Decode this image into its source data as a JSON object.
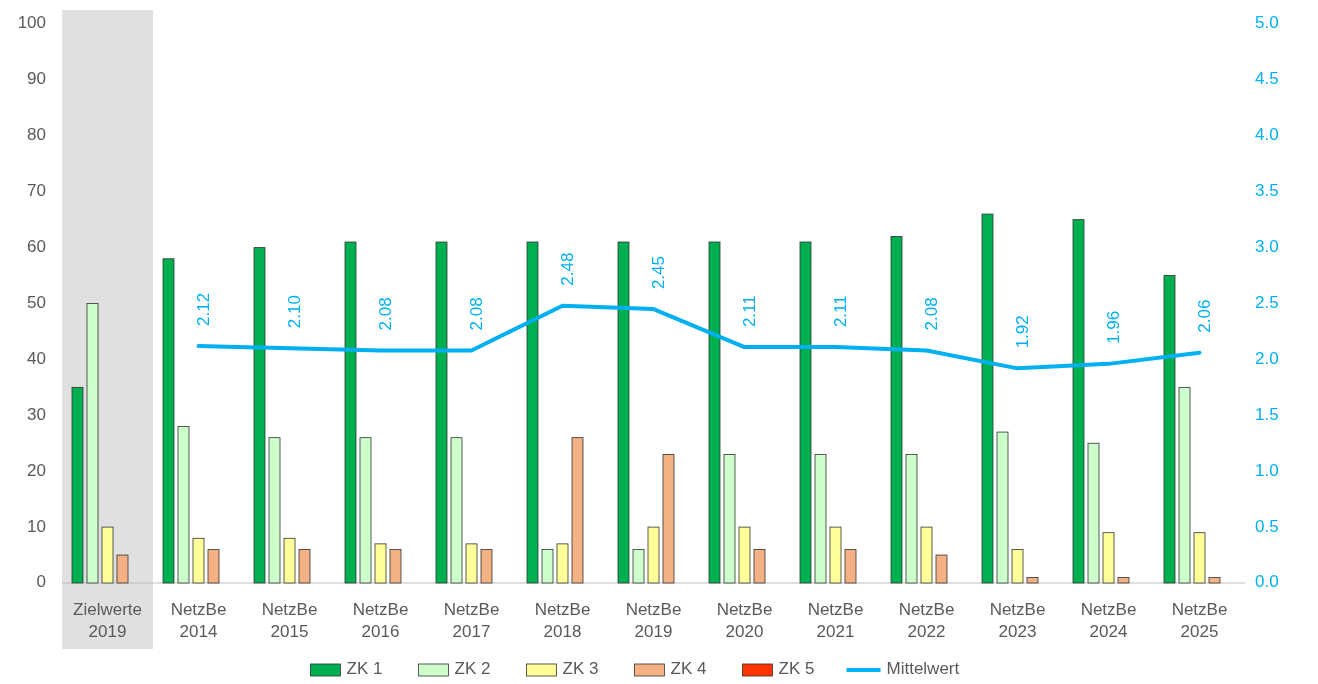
{
  "chart_data": {
    "type": "bar",
    "categories": [
      "Zielwerte 2019",
      "NetzBe 2014",
      "NetzBe 2015",
      "NetzBe 2016",
      "NetzBe 2017",
      "NetzBe 2018",
      "NetzBe 2019",
      "NetzBe 2020",
      "NetzBe 2021",
      "NetzBe 2022",
      "NetzBe 2023",
      "NetzBe 2024",
      "NetzBe 2025"
    ],
    "series": [
      {
        "name": "ZK 1",
        "color": "#00b050",
        "values": [
          35,
          58,
          60,
          61,
          61,
          61,
          61,
          61,
          61,
          62,
          66,
          65,
          55
        ]
      },
      {
        "name": "ZK 2",
        "color": "#ccffcc",
        "values": [
          50,
          28,
          26,
          26,
          26,
          6,
          6,
          23,
          23,
          23,
          27,
          25,
          35
        ]
      },
      {
        "name": "ZK 3",
        "color": "#ffff99",
        "values": [
          10,
          8,
          8,
          7,
          7,
          7,
          10,
          10,
          10,
          10,
          6,
          9,
          9
        ]
      },
      {
        "name": "ZK 4",
        "color": "#f4b183",
        "values": [
          5,
          6,
          6,
          6,
          6,
          26,
          23,
          6,
          6,
          5,
          1,
          1,
          1
        ]
      },
      {
        "name": "ZK 5",
        "color": "#ff3300",
        "values": [
          0,
          0,
          0,
          0,
          0,
          0,
          0,
          0,
          0,
          0,
          0,
          0,
          0
        ]
      },
      {
        "name": "Mittelwert",
        "type": "line",
        "axis": "y2",
        "color": "#00b0f0",
        "values": [
          null,
          2.12,
          2.1,
          2.08,
          2.08,
          2.48,
          2.45,
          2.11,
          2.11,
          2.08,
          1.92,
          1.96,
          2.06
        ],
        "value_labels": [
          null,
          "2.12",
          "2.10",
          "2.08",
          "2.08",
          "2.48",
          "2.45",
          "2.11",
          "2.11",
          "2.08",
          "1.92",
          "1.96",
          "2.06"
        ]
      }
    ],
    "ylim": [
      0,
      100
    ],
    "yticks": [
      0,
      10,
      20,
      30,
      40,
      50,
      60,
      70,
      80,
      90,
      100
    ],
    "y2lim": [
      0,
      5
    ],
    "y2ticks": [
      {
        "value": 0,
        "label": "0.0"
      },
      {
        "value": 0.5,
        "label": "0.5"
      },
      {
        "value": 1,
        "label": "1.0"
      },
      {
        "value": 1.5,
        "label": "1.5"
      },
      {
        "value": 2,
        "label": "2.0"
      },
      {
        "value": 2.5,
        "label": "2.5"
      },
      {
        "value": 3,
        "label": "3.0"
      },
      {
        "value": 3.5,
        "label": "3.5"
      },
      {
        "value": 4,
        "label": "4.0"
      },
      {
        "value": 4.5,
        "label": "4.5"
      },
      {
        "value": 5,
        "label": "5.0"
      }
    ],
    "bands": [
      {
        "axis": "x",
        "from": "Zielwerte 2019",
        "to": "Zielwerte 2019",
        "color": "#e0e0e0"
      }
    ],
    "legend": "bottom",
    "grid": false
  }
}
